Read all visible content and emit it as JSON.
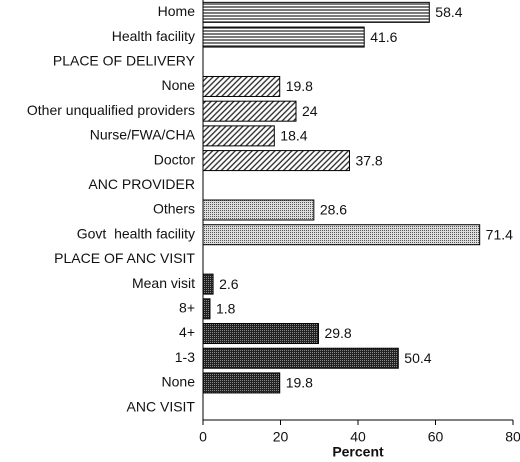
{
  "chart_data": {
    "type": "barh",
    "categories": [
      "Home",
      "Health facility",
      "PLACE OF DELIVERY",
      "None",
      "Other unqualified providers",
      "Nurse/FWA/CHA",
      "Doctor",
      "ANC PROVIDER",
      "Others",
      "Govt  health facility",
      "PLACE OF ANC VISIT",
      "Mean visit",
      "8+",
      "4+",
      "1-3",
      "None",
      "ANC VISIT"
    ],
    "values": [
      58.4,
      41.6,
      null,
      19.8,
      24,
      18.4,
      37.8,
      null,
      28.6,
      71.4,
      null,
      2.6,
      1.8,
      29.8,
      50.4,
      19.8,
      null
    ],
    "bar_patterns": [
      "horizontal",
      "horizontal",
      null,
      "diagonal",
      "diagonal",
      "diagonal",
      "diagonal",
      null,
      "dotted",
      "dotted",
      null,
      "dense",
      "dense",
      "dense",
      "dense",
      "dense",
      null
    ],
    "xlabel": "Percent",
    "xlim": [
      0,
      80
    ],
    "xticks": [
      0,
      20,
      40,
      60,
      80
    ],
    "grid": false
  }
}
